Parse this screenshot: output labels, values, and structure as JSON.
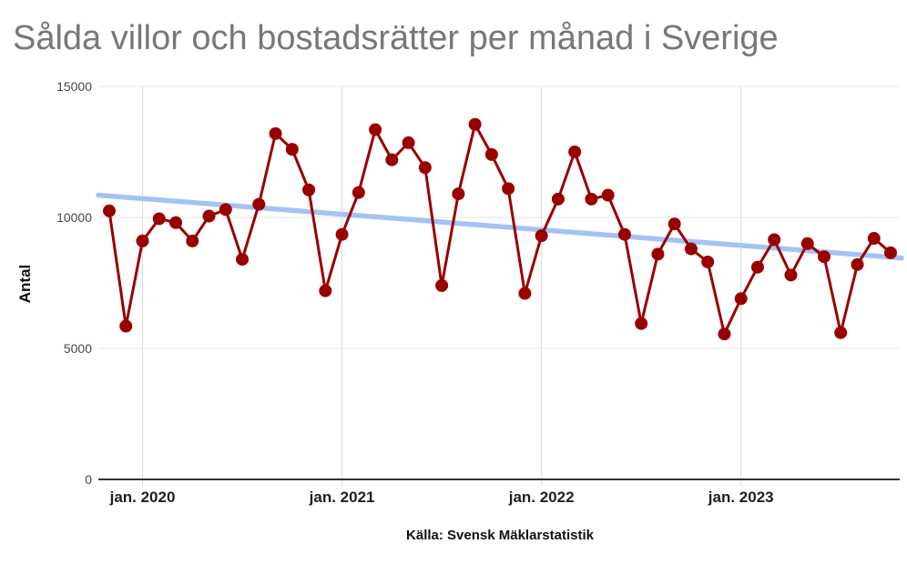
{
  "title": "Sålda villor och bostadsrätter per månad i Sverige",
  "y_axis_label": "Antal",
  "footer": "Källa: Svensk Mäklarstatistik",
  "colors": {
    "series_red": "#990000",
    "trendline_blue": "#a4c2f4",
    "title_gray": "#777777",
    "gridline": "#e4e4e4",
    "axis_line": "#333333"
  },
  "chart_data": {
    "type": "line",
    "title": "Sålda villor och bostadsrätter per månad i Sverige",
    "xlabel": "",
    "ylabel": "Antal",
    "ylim": [
      0,
      15000
    ],
    "yticks": [
      0,
      5000,
      10000,
      15000
    ],
    "ytick_labels": [
      "0",
      "5000",
      "10000",
      "15000"
    ],
    "grid": true,
    "legend_position": "none",
    "xticks": [
      {
        "label": "jan. 2020",
        "month_index": 2
      },
      {
        "label": "jan. 2021",
        "month_index": 14
      },
      {
        "label": "jan. 2022",
        "month_index": 26
      },
      {
        "label": "jan. 2023",
        "month_index": 38
      }
    ],
    "x": [
      "nov. 2019",
      "dec. 2019",
      "jan. 2020",
      "feb. 2020",
      "mar. 2020",
      "apr. 2020",
      "maj 2020",
      "jun. 2020",
      "jul. 2020",
      "aug. 2020",
      "sep. 2020",
      "okt. 2020",
      "nov. 2020",
      "dec. 2020",
      "jan. 2021",
      "feb. 2021",
      "mar. 2021",
      "apr. 2021",
      "maj 2021",
      "jun. 2021",
      "jul. 2021",
      "aug. 2021",
      "sep. 2021",
      "okt. 2021",
      "nov. 2021",
      "dec. 2021",
      "jan. 2022",
      "feb. 2022",
      "mar. 2022",
      "apr. 2022",
      "maj 2022",
      "jun. 2022",
      "jul. 2022",
      "aug. 2022",
      "sep. 2022",
      "okt. 2022",
      "nov. 2022",
      "dec. 2022",
      "jan. 2023",
      "feb. 2023",
      "mar. 2023",
      "apr. 2023",
      "maj 2023",
      "jun. 2023",
      "jul. 2023",
      "aug. 2023",
      "sep. 2023",
      "okt. 2023"
    ],
    "series": [
      {
        "color": "#990000",
        "point_radius": 7,
        "values": [
          10250,
          5850,
          9100,
          9950,
          9800,
          9100,
          10050,
          10300,
          8400,
          10500,
          13200,
          12600,
          11050,
          7200,
          9350,
          10950,
          13350,
          12200,
          12850,
          11900,
          7400,
          10900,
          13550,
          12400,
          11100,
          7100,
          9300,
          10700,
          12500,
          10700,
          10850,
          9350,
          5950,
          8600,
          9750,
          8800,
          8300,
          5550,
          6900,
          8100,
          9150,
          7800,
          9000,
          8500,
          5600,
          8200,
          9200,
          8650
        ]
      }
    ],
    "trendline": {
      "color": "#a4c2f4",
      "start_value": 10850,
      "end_value": 8450
    }
  }
}
